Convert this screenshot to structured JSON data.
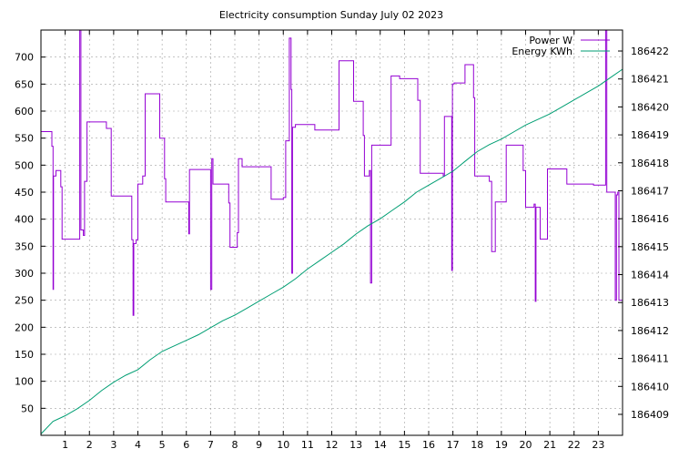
{
  "chart_data": {
    "type": "line",
    "title": "Electricity consumption Sunday July 02 2023",
    "grid": true,
    "legend_position": "top-right",
    "x": {
      "range": [
        0,
        24
      ],
      "ticks": [
        1,
        2,
        3,
        4,
        5,
        6,
        7,
        8,
        9,
        10,
        11,
        12,
        13,
        14,
        15,
        16,
        17,
        18,
        19,
        20,
        21,
        22,
        23
      ]
    },
    "y_left": {
      "range": [
        0,
        750
      ],
      "ticks": [
        50,
        100,
        150,
        200,
        250,
        300,
        350,
        400,
        450,
        500,
        550,
        600,
        650,
        700
      ]
    },
    "y_right": {
      "range": [
        186408.25,
        186422.75
      ],
      "ticks": [
        186409,
        186410,
        186411,
        186412,
        186413,
        186414,
        186415,
        186416,
        186417,
        186418,
        186419,
        186420,
        186421,
        186422
      ]
    },
    "series": [
      {
        "name": "Power W",
        "axis": "left",
        "color": "#9400d3",
        "points": [
          [
            0,
            562
          ],
          [
            0.45,
            562
          ],
          [
            0.45,
            535
          ],
          [
            0.5,
            535
          ],
          [
            0.5,
            270
          ],
          [
            0.52,
            270
          ],
          [
            0.52,
            480
          ],
          [
            0.62,
            480
          ],
          [
            0.62,
            490
          ],
          [
            0.82,
            490
          ],
          [
            0.82,
            460
          ],
          [
            0.87,
            460
          ],
          [
            0.87,
            363
          ],
          [
            1.6,
            363
          ],
          [
            1.6,
            750
          ],
          [
            1.65,
            750
          ],
          [
            1.65,
            380
          ],
          [
            1.75,
            380
          ],
          [
            1.75,
            370
          ],
          [
            1.8,
            370
          ],
          [
            1.8,
            470
          ],
          [
            1.9,
            470
          ],
          [
            1.9,
            580
          ],
          [
            2.7,
            580
          ],
          [
            2.7,
            568
          ],
          [
            2.9,
            568
          ],
          [
            2.9,
            443
          ],
          [
            3.75,
            443
          ],
          [
            3.75,
            362
          ],
          [
            3.8,
            362
          ],
          [
            3.8,
            222
          ],
          [
            3.83,
            222
          ],
          [
            3.83,
            355
          ],
          [
            3.93,
            355
          ],
          [
            3.93,
            362
          ],
          [
            4.0,
            362
          ],
          [
            4.0,
            465
          ],
          [
            4.2,
            465
          ],
          [
            4.2,
            480
          ],
          [
            4.3,
            480
          ],
          [
            4.3,
            632
          ],
          [
            4.9,
            632
          ],
          [
            4.9,
            550
          ],
          [
            5.1,
            550
          ],
          [
            5.1,
            475
          ],
          [
            5.15,
            475
          ],
          [
            5.15,
            432
          ],
          [
            6.1,
            432
          ],
          [
            6.1,
            373
          ],
          [
            6.13,
            373
          ],
          [
            6.13,
            492
          ],
          [
            7.0,
            492
          ],
          [
            7.0,
            270
          ],
          [
            7.05,
            270
          ],
          [
            7.05,
            512
          ],
          [
            7.1,
            512
          ],
          [
            7.1,
            465
          ],
          [
            7.75,
            465
          ],
          [
            7.75,
            430
          ],
          [
            7.8,
            430
          ],
          [
            7.8,
            348
          ],
          [
            8.1,
            348
          ],
          [
            8.1,
            375
          ],
          [
            8.15,
            375
          ],
          [
            8.15,
            512
          ],
          [
            8.3,
            512
          ],
          [
            8.3,
            497
          ],
          [
            9.5,
            497
          ],
          [
            9.5,
            437
          ],
          [
            10.0,
            437
          ],
          [
            10.0,
            440
          ],
          [
            10.1,
            440
          ],
          [
            10.1,
            545
          ],
          [
            10.25,
            545
          ],
          [
            10.25,
            735
          ],
          [
            10.32,
            735
          ],
          [
            10.32,
            640
          ],
          [
            10.35,
            640
          ],
          [
            10.35,
            300
          ],
          [
            10.38,
            300
          ],
          [
            10.38,
            570
          ],
          [
            10.5,
            570
          ],
          [
            10.5,
            575
          ],
          [
            11.3,
            575
          ],
          [
            11.3,
            565
          ],
          [
            12.3,
            565
          ],
          [
            12.3,
            693
          ],
          [
            12.9,
            693
          ],
          [
            12.9,
            618
          ],
          [
            13.3,
            618
          ],
          [
            13.3,
            555
          ],
          [
            13.35,
            555
          ],
          [
            13.35,
            480
          ],
          [
            13.55,
            480
          ],
          [
            13.55,
            490
          ],
          [
            13.6,
            490
          ],
          [
            13.6,
            282
          ],
          [
            13.65,
            282
          ],
          [
            13.65,
            537
          ],
          [
            14.45,
            537
          ],
          [
            14.45,
            665
          ],
          [
            14.8,
            665
          ],
          [
            14.8,
            660
          ],
          [
            15.55,
            660
          ],
          [
            15.55,
            620
          ],
          [
            15.65,
            620
          ],
          [
            15.65,
            485
          ],
          [
            16.6,
            485
          ],
          [
            16.6,
            480
          ],
          [
            16.65,
            480
          ],
          [
            16.65,
            590
          ],
          [
            16.95,
            590
          ],
          [
            16.95,
            305
          ],
          [
            16.98,
            305
          ],
          [
            16.98,
            650
          ],
          [
            17.05,
            650
          ],
          [
            17.05,
            652
          ],
          [
            17.5,
            652
          ],
          [
            17.5,
            686
          ],
          [
            17.85,
            686
          ],
          [
            17.85,
            625
          ],
          [
            17.9,
            625
          ],
          [
            17.9,
            480
          ],
          [
            18.5,
            480
          ],
          [
            18.5,
            470
          ],
          [
            18.6,
            470
          ],
          [
            18.6,
            340
          ],
          [
            18.75,
            340
          ],
          [
            18.75,
            432
          ],
          [
            19.2,
            432
          ],
          [
            19.2,
            537
          ],
          [
            19.9,
            537
          ],
          [
            19.9,
            490
          ],
          [
            20.0,
            490
          ],
          [
            20.0,
            422
          ],
          [
            20.35,
            422
          ],
          [
            20.35,
            428
          ],
          [
            20.4,
            428
          ],
          [
            20.4,
            248
          ],
          [
            20.43,
            248
          ],
          [
            20.43,
            422
          ],
          [
            20.6,
            422
          ],
          [
            20.6,
            363
          ],
          [
            20.9,
            363
          ],
          [
            20.9,
            493
          ],
          [
            21.7,
            493
          ],
          [
            21.7,
            465
          ],
          [
            22.8,
            465
          ],
          [
            22.8,
            463
          ],
          [
            23.3,
            463
          ],
          [
            23.3,
            750
          ],
          [
            23.35,
            750
          ],
          [
            23.35,
            450
          ],
          [
            23.7,
            450
          ],
          [
            23.7,
            250
          ],
          [
            23.75,
            250
          ],
          [
            23.75,
            445
          ],
          [
            23.8,
            445
          ],
          [
            23.8,
            450
          ],
          [
            23.85,
            450
          ],
          [
            23.85,
            250
          ],
          [
            24,
            250
          ]
        ]
      },
      {
        "name": "Energy KWh",
        "axis": "right",
        "color": "#009e73",
        "points": [
          [
            0,
            186408.3
          ],
          [
            0.5,
            186408.75
          ],
          [
            1.0,
            186408.95
          ],
          [
            1.5,
            186409.2
          ],
          [
            2.0,
            186409.5
          ],
          [
            2.5,
            186409.85
          ],
          [
            3.0,
            186410.15
          ],
          [
            3.5,
            186410.4
          ],
          [
            4.0,
            186410.6
          ],
          [
            4.5,
            186410.95
          ],
          [
            5.0,
            186411.25
          ],
          [
            5.5,
            186411.45
          ],
          [
            6.0,
            186411.65
          ],
          [
            6.5,
            186411.85
          ],
          [
            7.0,
            186412.1
          ],
          [
            7.5,
            186412.35
          ],
          [
            8.0,
            186412.55
          ],
          [
            8.5,
            186412.8
          ],
          [
            9.0,
            186413.05
          ],
          [
            9.5,
            186413.3
          ],
          [
            10.0,
            186413.55
          ],
          [
            10.5,
            186413.85
          ],
          [
            11.0,
            186414.2
          ],
          [
            11.5,
            186414.5
          ],
          [
            12.0,
            186414.8
          ],
          [
            12.5,
            186415.1
          ],
          [
            13.0,
            186415.45
          ],
          [
            13.5,
            186415.75
          ],
          [
            14.0,
            186416.0
          ],
          [
            14.5,
            186416.3
          ],
          [
            15.0,
            186416.6
          ],
          [
            15.5,
            186416.95
          ],
          [
            16.0,
            186417.2
          ],
          [
            16.5,
            186417.45
          ],
          [
            17.0,
            186417.7
          ],
          [
            17.5,
            186418.05
          ],
          [
            18.0,
            186418.4
          ],
          [
            18.5,
            186418.65
          ],
          [
            19.0,
            186418.85
          ],
          [
            19.5,
            186419.1
          ],
          [
            20.0,
            186419.35
          ],
          [
            20.5,
            186419.55
          ],
          [
            21.0,
            186419.75
          ],
          [
            21.5,
            186420.0
          ],
          [
            22.0,
            186420.25
          ],
          [
            22.5,
            186420.5
          ],
          [
            23.0,
            186420.75
          ],
          [
            23.5,
            186421.05
          ],
          [
            24.0,
            186421.35
          ]
        ]
      }
    ]
  }
}
